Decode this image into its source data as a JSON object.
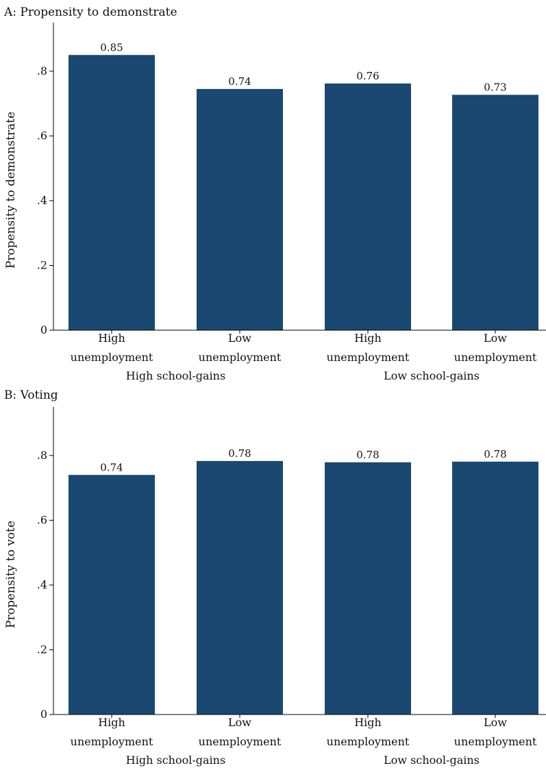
{
  "chart_data": [
    {
      "type": "bar",
      "title": "A: Propensity to demonstrate",
      "ylabel": "Propensity to demonstrate",
      "ylim": [
        0,
        0.95
      ],
      "yticks": [
        0,
        0.2,
        0.4,
        0.6,
        0.8
      ],
      "ytick_labels": [
        "0",
        ".2",
        ".4",
        ".6",
        ".8"
      ],
      "groups": [
        {
          "label": "High school-gains",
          "categories": [
            [
              "High",
              "unemployment"
            ],
            [
              "Low",
              "unemployment"
            ]
          ]
        },
        {
          "label": "Low school-gains",
          "categories": [
            [
              "High",
              "unemployment"
            ],
            [
              "Low",
              "unemployment"
            ]
          ]
        }
      ],
      "values": [
        0.85,
        0.745,
        0.762,
        0.727
      ],
      "value_labels": [
        "0.85",
        "0.74",
        "0.76",
        "0.73"
      ],
      "bar_color": "#1a4870",
      "grid": false
    },
    {
      "type": "bar",
      "title": "B: Voting",
      "ylabel": "Propensity to vote",
      "ylim": [
        0,
        0.95
      ],
      "yticks": [
        0,
        0.2,
        0.4,
        0.6,
        0.8
      ],
      "ytick_labels": [
        "0",
        ".2",
        ".4",
        ".6",
        ".8"
      ],
      "groups": [
        {
          "label": "High school-gains",
          "categories": [
            [
              "High",
              "unemployment"
            ],
            [
              "Low",
              "unemployment"
            ]
          ]
        },
        {
          "label": "Low school-gains",
          "categories": [
            [
              "High",
              "unemployment"
            ],
            [
              "Low",
              "unemployment"
            ]
          ]
        }
      ],
      "values": [
        0.74,
        0.783,
        0.779,
        0.781
      ],
      "value_labels": [
        "0.74",
        "0.78",
        "0.78",
        "0.78"
      ],
      "bar_color": "#1a4870",
      "grid": false
    }
  ]
}
